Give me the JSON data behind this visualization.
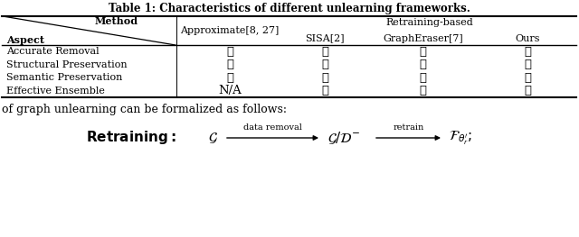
{
  "title": "Table 1: Characteristics of different unlearning frameworks.",
  "rows": [
    [
      "Accurate Removal",
      "✗",
      "✓",
      "✓",
      "✓"
    ],
    [
      "Structural Preservation",
      "✓",
      "✗",
      "✓",
      "✓"
    ],
    [
      "Semantic Preservation",
      "✓",
      "✓",
      "✗",
      "✓"
    ],
    [
      "Effective Ensemble",
      "N/A",
      "✗",
      "✗",
      "✓"
    ]
  ],
  "bottom_text": "of graph unlearning can be formalized as follows:",
  "bg_color": "#ffffff",
  "text_color": "#000000",
  "col_headers_row1": [
    "Approximate[8, 27]",
    "Retraining-based"
  ],
  "col_headers_row2": [
    "SISA[2]",
    "GraphEraser[7]",
    "Ours"
  ],
  "check_color": "#000000",
  "cross_color": "#000000"
}
